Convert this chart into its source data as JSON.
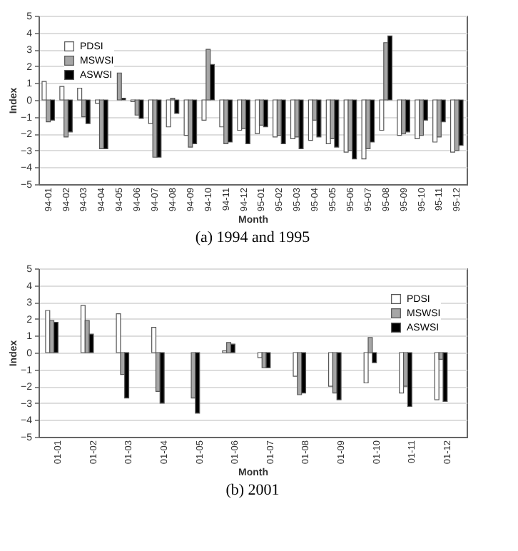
{
  "chart_data": [
    {
      "type": "bar",
      "title": "(a) 1994 and 1995",
      "xlabel": "Month",
      "ylabel": "Index",
      "categories": [
        "94-01",
        "94-02",
        "94-03",
        "94-04",
        "94-05",
        "94-06",
        "94-07",
        "94-08",
        "94-09",
        "94-10",
        "94-11",
        "94-12",
        "95-01",
        "95-02",
        "95-03",
        "95-04",
        "95-05",
        "95-06",
        "95-07",
        "95-08",
        "95-09",
        "95-10",
        "95-11",
        "95-12"
      ],
      "series": [
        {
          "name": "PDSI",
          "color": "#ffffff",
          "values": [
            1.1,
            0.8,
            0.7,
            -0.2,
            null,
            -0.1,
            -1.4,
            -1.6,
            -2.1,
            -1.2,
            -1.6,
            -1.8,
            -2.0,
            -2.2,
            -2.3,
            -2.4,
            -2.6,
            -3.1,
            -3.5,
            -1.8,
            -2.1,
            -2.3,
            -2.5,
            -3.1
          ]
        },
        {
          "name": "MSWSI",
          "color": "#a6a6a6",
          "values": [
            -1.3,
            -2.2,
            -1.0,
            -2.9,
            1.6,
            -0.9,
            -3.4,
            0.1,
            -2.8,
            3.0,
            -2.6,
            -1.7,
            -1.5,
            -2.1,
            -2.2,
            -1.2,
            -2.3,
            -3.0,
            -2.9,
            3.4,
            -2.0,
            -2.1,
            -2.2,
            -3.0
          ]
        },
        {
          "name": "ASWSI",
          "color": "#000000",
          "values": [
            -1.2,
            -1.9,
            -1.4,
            -2.9,
            0.1,
            -1.1,
            -3.4,
            -0.8,
            -2.6,
            2.1,
            -2.5,
            -2.6,
            -1.6,
            -2.6,
            -2.9,
            -2.2,
            -2.8,
            -3.5,
            -2.5,
            3.8,
            -1.9,
            -1.2,
            -1.3,
            -2.7
          ]
        }
      ],
      "ylim": [
        -5,
        5
      ],
      "yticks": [
        -5,
        -4,
        -3,
        -2,
        -1,
        0,
        1,
        2,
        3,
        4,
        5
      ],
      "grid": "y",
      "legend": "top left"
    },
    {
      "type": "bar",
      "title": "(b) 2001",
      "xlabel": "Month",
      "ylabel": "Index",
      "categories": [
        "01-01",
        "01-02",
        "01-03",
        "01-04",
        "01-05",
        "01-06",
        "01-07",
        "01-08",
        "01-09",
        "01-10",
        "01-11",
        "01-12"
      ],
      "series": [
        {
          "name": "PDSI",
          "color": "#ffffff",
          "values": [
            2.5,
            2.8,
            2.3,
            1.5,
            null,
            0.1,
            -0.3,
            -1.4,
            -2.0,
            -1.8,
            -2.4,
            -2.8
          ]
        },
        {
          "name": "MSWSI",
          "color": "#a6a6a6",
          "values": [
            1.9,
            1.9,
            -1.3,
            -2.3,
            -2.7,
            0.6,
            -0.9,
            -2.5,
            -2.4,
            0.9,
            -2.0,
            -0.4
          ]
        },
        {
          "name": "ASWSI",
          "color": "#000000",
          "values": [
            1.8,
            1.1,
            -2.7,
            -3.0,
            -3.6,
            0.5,
            -0.9,
            -2.4,
            -2.8,
            -0.6,
            -3.2,
            -2.9
          ]
        }
      ],
      "ylim": [
        -5,
        5
      ],
      "yticks": [
        -5,
        -4,
        -3,
        -2,
        -1,
        0,
        1,
        2,
        3,
        4,
        5
      ],
      "grid": "y",
      "legend": "top right"
    }
  ]
}
